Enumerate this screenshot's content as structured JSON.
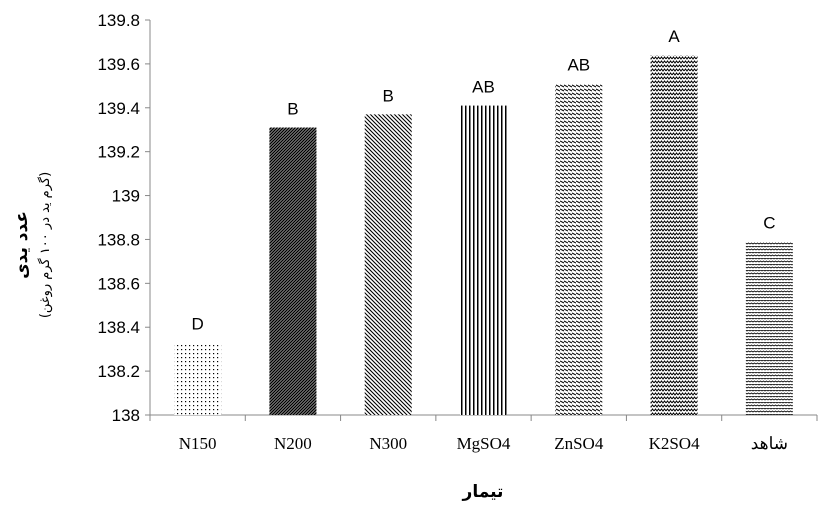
{
  "chart_data": {
    "type": "bar",
    "categories": [
      "N150",
      "N200",
      "N300",
      "MgSO4",
      "ZnSO4",
      "K2SO4",
      "شاهد"
    ],
    "values": [
      138.33,
      139.31,
      139.37,
      139.41,
      139.51,
      139.64,
      138.79
    ],
    "data_labels": [
      "D",
      "B",
      "B",
      "AB",
      "AB",
      "A",
      "C"
    ],
    "patterns": [
      "dots",
      "dense-diagonal",
      "diagonal",
      "vertical",
      "horizontal-dash",
      "zigzag",
      "checker"
    ],
    "xlabel": "تیمار",
    "ylabel": "عدد یدی",
    "ylabel_sub": "(گرم ید در ۱۰۰ گرم روغن)",
    "ylim": [
      138,
      139.8
    ],
    "yticks": [
      "138",
      "138.2",
      "138.4",
      "138.6",
      "138.8",
      "139",
      "139.2",
      "139.4",
      "139.6",
      "139.8"
    ],
    "grid": false,
    "legend": "none"
  }
}
